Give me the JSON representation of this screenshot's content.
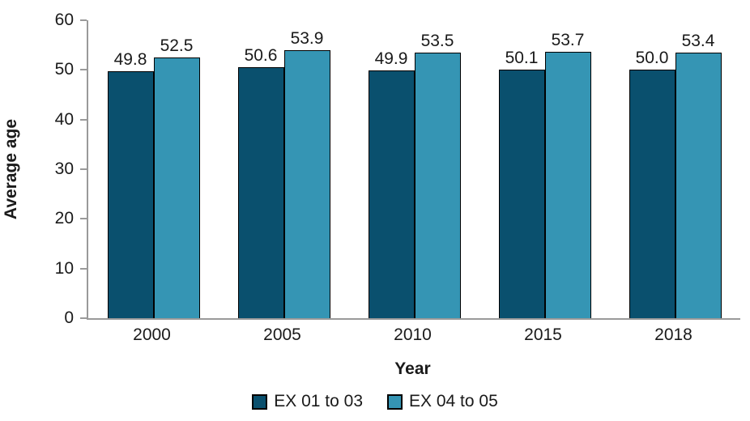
{
  "chart_data": {
    "type": "bar",
    "title": "",
    "categories": [
      "2000",
      "2005",
      "2010",
      "2015",
      "2018"
    ],
    "series": [
      {
        "name": "EX 01 to 03",
        "color": "#0a506e",
        "values": [
          49.8,
          50.6,
          49.9,
          50.1,
          50.0
        ]
      },
      {
        "name": "EX 04 to 05",
        "color": "#3595b4",
        "values": [
          52.5,
          53.9,
          53.5,
          53.7,
          53.4
        ]
      }
    ],
    "xlabel": "Year",
    "ylabel": "Average age",
    "ylim": [
      0,
      60
    ],
    "y_ticks": [
      0,
      10,
      20,
      30,
      40,
      50,
      60
    ],
    "grid": false,
    "legend_position": "bottom",
    "bar_labels_decimals": 1
  },
  "colors": {
    "axis": "#9a9a9a",
    "text": "#1a1a1a",
    "bar_border": "#000000",
    "background": "#ffffff"
  }
}
